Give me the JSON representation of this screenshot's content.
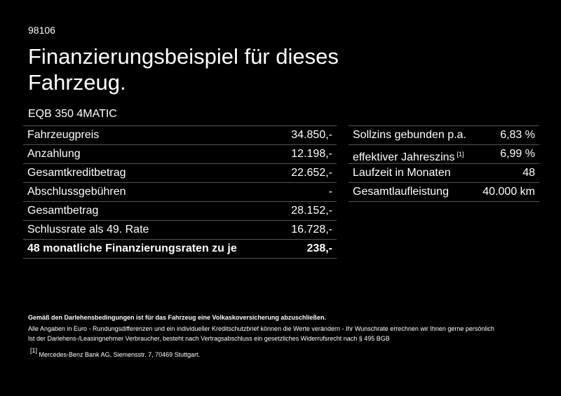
{
  "header": {
    "code": "98106",
    "title": "Finanzierungsbeispiel für dieses Fahrzeug.",
    "model": "EQB 350 4MATIC"
  },
  "left_table": {
    "rows": [
      {
        "label": "Fahrzeugpreis",
        "value": "34.850,-"
      },
      {
        "label": "Anzahlung",
        "value": "12.198,-"
      },
      {
        "label": "Gesamtkreditbetrag",
        "value": "22.652,-"
      },
      {
        "label": "Abschlussgebühren",
        "value": "-"
      },
      {
        "label": "Gesamtbetrag",
        "value": "28.152,-"
      },
      {
        "label": "Schlussrate als 49. Rate",
        "value": "16.728,-"
      },
      {
        "label": "48 monatliche Finanzierungsraten zu je",
        "value": "238,-"
      }
    ]
  },
  "right_table": {
    "rows": [
      {
        "label": "Sollzins gebunden p.a.",
        "value": "6,83 %"
      },
      {
        "label": "effektiver Jahreszins",
        "footnote": "[1]",
        "value": "6,99 %"
      },
      {
        "label": "Laufzeit in Monaten",
        "value": "48"
      },
      {
        "label": "Gesamtlaufleistung",
        "value": "40.000 km"
      }
    ]
  },
  "notes": {
    "bold": "Gemäß den Darlehensbedingungen ist für das Fahrzeug eine Volkaskoversicherung abzuschließen.",
    "lines": [
      "Alle Angaben in Euro - Rundungsdifferenzen und ein individueller Kreditschutzbrief können die Werte verändern - Ihr Wunschrate errechnen wir Ihnen gerne persönlich",
      "Ist der Darlehens-/Leasingnehmer Verbraucher, besteht nach Vertragsabschluss ein gesetzliches Widerrufsrecht nach § 495 BGB"
    ],
    "footnote_marker": "[1]",
    "footnote_text": "Mercedes-Benz Bank AG, Siemensstr. 7, 70469 Stuttgart."
  }
}
